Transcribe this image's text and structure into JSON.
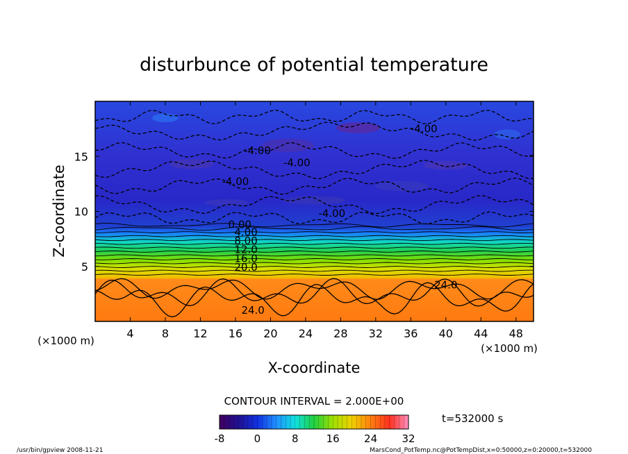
{
  "chart_data": {
    "type": "heatmap",
    "title": "disturbunce of potential temperature",
    "xlabel": "X-coordinate",
    "ylabel": "Z-coordinate",
    "x_unit": "(×1000 m)",
    "y_unit": "(×1000 m)",
    "xlim": [
      0,
      50
    ],
    "ylim": [
      0,
      20
    ],
    "x_ticks": [
      4,
      8,
      12,
      16,
      20,
      24,
      28,
      32,
      36,
      40,
      44,
      48
    ],
    "y_ticks": [
      5,
      10,
      15
    ],
    "contour_interval_text": "CONTOUR INTERVAL = 2.000E+00",
    "time_text": "t=532000 s",
    "colorbar": {
      "min": -8,
      "max": 32,
      "ticks": [
        -8,
        0,
        8,
        16,
        24,
        32
      ]
    },
    "contour_labels": [
      {
        "text": "-4.00",
        "x": 37.5,
        "z": 17.2
      },
      {
        "text": "-4.00",
        "x": 18.5,
        "z": 15.2
      },
      {
        "text": "-4.00",
        "x": 23.0,
        "z": 14.1
      },
      {
        "text": "-4.00",
        "x": 16.0,
        "z": 12.4
      },
      {
        "text": "-4.00",
        "x": 27.0,
        "z": 9.5
      },
      {
        "text": "0.00",
        "x": 16.5,
        "z": 8.5
      },
      {
        "text": "4.00",
        "x": 17.2,
        "z": 7.8
      },
      {
        "text": "8.00",
        "x": 17.2,
        "z": 7.0
      },
      {
        "text": "12.0",
        "x": 17.2,
        "z": 6.2
      },
      {
        "text": "16.0",
        "x": 17.2,
        "z": 5.4
      },
      {
        "text": "20.0",
        "x": 17.2,
        "z": 4.6
      },
      {
        "text": "24.0",
        "x": 40.0,
        "z": 3.0
      },
      {
        "text": "24.0",
        "x": 18.0,
        "z": 0.7
      }
    ]
  },
  "footer": {
    "left": "/usr/bin/gpview   2008-11-21",
    "right": "MarsCond_PotTemp.nc@PotTempDist,x=0:50000,z=0:20000,t=532000"
  }
}
